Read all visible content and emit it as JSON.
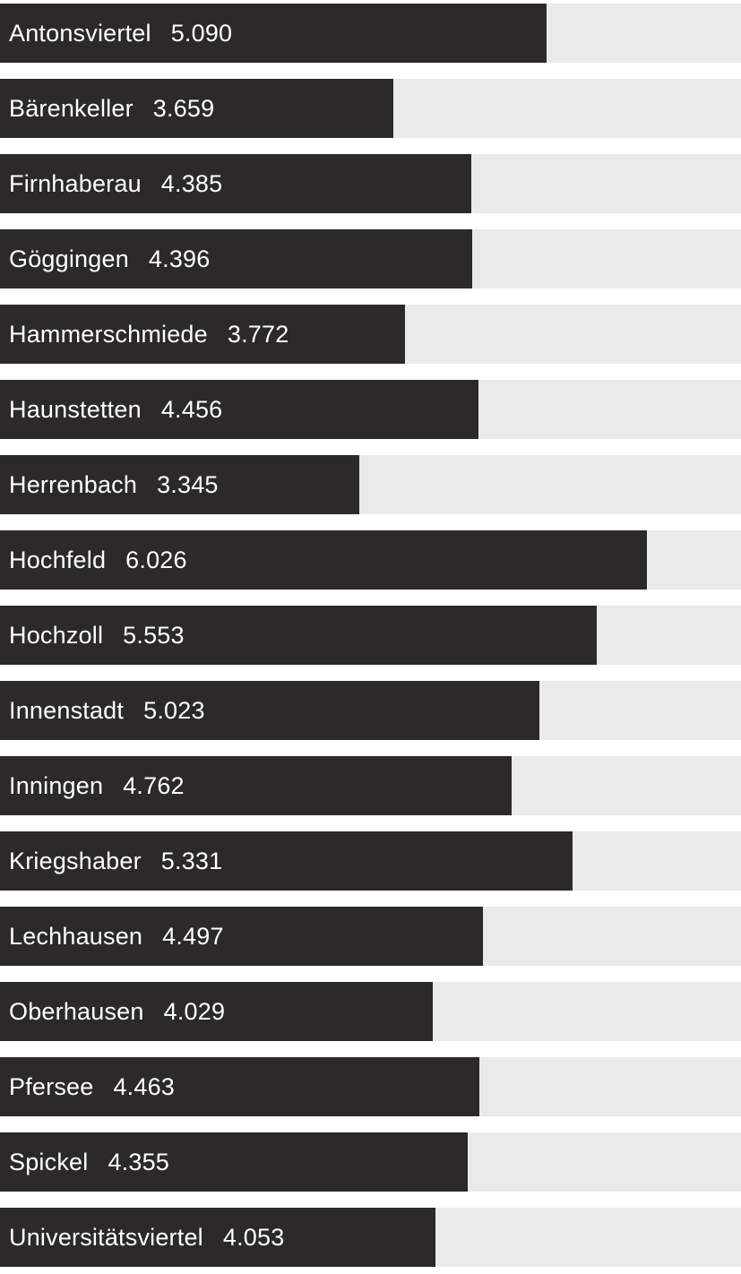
{
  "chart_data": {
    "type": "bar",
    "orientation": "horizontal",
    "title": "",
    "xlabel": "",
    "ylabel": "",
    "xlim": [
      0,
      6900
    ],
    "grid": false,
    "legend": false,
    "bar_color": "#2b2a29",
    "track_color": "#eaeae8",
    "text_color": "#ffffff",
    "categories": [
      "Antonsviertel",
      "Bärenkeller",
      "Firnhaberau",
      "Göggingen",
      "Hammerschmiede",
      "Haunstetten",
      "Herrenbach",
      "Hochfeld",
      "Hochzoll",
      "Innenstadt",
      "Inningen",
      "Kriegshaber",
      "Lechhausen",
      "Oberhausen",
      "Pfersee",
      "Spickel",
      "Universitätsviertel"
    ],
    "values": [
      5090,
      3659,
      4385,
      4396,
      3772,
      4456,
      3345,
      6026,
      5553,
      5023,
      4762,
      5331,
      4497,
      4029,
      4463,
      4355,
      4053
    ],
    "value_labels": [
      "5.090",
      "3.659",
      "4.385",
      "4.396",
      "3.772",
      "4.456",
      "3.345",
      "6.026",
      "5.553",
      "5.023",
      "4.762",
      "5.331",
      "4.497",
      "4.029",
      "4.463",
      "4.355",
      "4.053"
    ]
  }
}
